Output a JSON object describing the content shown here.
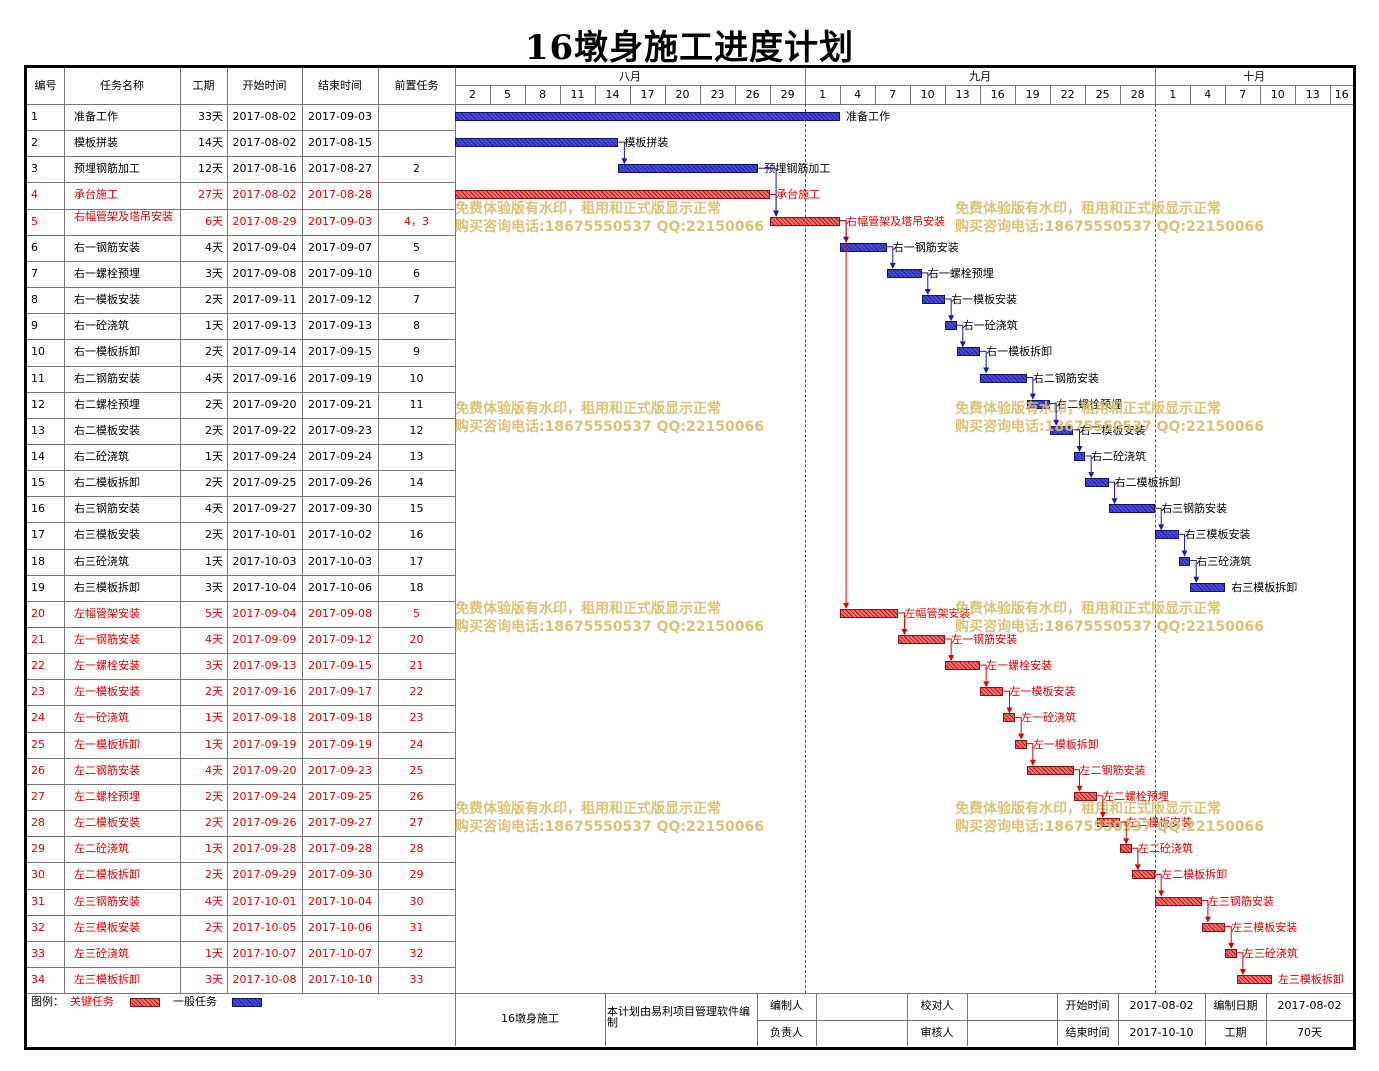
{
  "title": "16墩身施工进度计划",
  "colors": {
    "critical": "#e00000",
    "normal": "#1a1aa8"
  },
  "headers": {
    "id": "编号",
    "name": "任务名称",
    "duration": "工期",
    "start": "开始时间",
    "end": "结束时间",
    "pred": "前置任务"
  },
  "months": [
    {
      "label": "八月",
      "first_day_index": 0
    },
    {
      "label": "九月",
      "first_day_index": 30
    },
    {
      "label": "十月",
      "first_day_index": 60
    }
  ],
  "day_ticks": [
    "2",
    "5",
    "8",
    "11",
    "14",
    "17",
    "20",
    "23",
    "26",
    "29",
    "1",
    "4",
    "7",
    "10",
    "13",
    "16",
    "19",
    "22",
    "25",
    "28",
    "1",
    "4",
    "7",
    "10",
    "13",
    "16"
  ],
  "tasks": [
    {
      "id": "1",
      "name": "准备工作",
      "duration": "33天",
      "start": "2017-08-02",
      "end": "2017-09-03",
      "pred": "",
      "critical": false,
      "s": 0,
      "d": 33
    },
    {
      "id": "2",
      "name": "模板拼装",
      "duration": "14天",
      "start": "2017-08-02",
      "end": "2017-08-15",
      "pred": "",
      "critical": false,
      "s": 0,
      "d": 14
    },
    {
      "id": "3",
      "name": "预埋钢筋加工",
      "duration": "12天",
      "start": "2017-08-16",
      "end": "2017-08-27",
      "pred": "2",
      "critical": false,
      "s": 14,
      "d": 12
    },
    {
      "id": "4",
      "name": "承台施工",
      "duration": "27天",
      "start": "2017-08-02",
      "end": "2017-08-28",
      "pred": "",
      "critical": true,
      "s": 0,
      "d": 27
    },
    {
      "id": "5",
      "name": "右幅管架及塔吊安装",
      "duration": "6天",
      "start": "2017-08-29",
      "end": "2017-09-03",
      "pred": "4，3",
      "critical": true,
      "s": 27,
      "d": 6
    },
    {
      "id": "6",
      "name": "右一钢筋安装",
      "duration": "4天",
      "start": "2017-09-04",
      "end": "2017-09-07",
      "pred": "5",
      "critical": false,
      "s": 33,
      "d": 4
    },
    {
      "id": "7",
      "name": "右一螺栓预埋",
      "duration": "3天",
      "start": "2017-09-08",
      "end": "2017-09-10",
      "pred": "6",
      "critical": false,
      "s": 37,
      "d": 3
    },
    {
      "id": "8",
      "name": "右一模板安装",
      "duration": "2天",
      "start": "2017-09-11",
      "end": "2017-09-12",
      "pred": "7",
      "critical": false,
      "s": 40,
      "d": 2
    },
    {
      "id": "9",
      "name": "右一砼浇筑",
      "duration": "1天",
      "start": "2017-09-13",
      "end": "2017-09-13",
      "pred": "8",
      "critical": false,
      "s": 42,
      "d": 1
    },
    {
      "id": "10",
      "name": "右一模板拆卸",
      "duration": "2天",
      "start": "2017-09-14",
      "end": "2017-09-15",
      "pred": "9",
      "critical": false,
      "s": 43,
      "d": 2
    },
    {
      "id": "11",
      "name": "右二钢筋安装",
      "duration": "4天",
      "start": "2017-09-16",
      "end": "2017-09-19",
      "pred": "10",
      "critical": false,
      "s": 45,
      "d": 4
    },
    {
      "id": "12",
      "name": "右二螺栓预埋",
      "duration": "2天",
      "start": "2017-09-20",
      "end": "2017-09-21",
      "pred": "11",
      "critical": false,
      "s": 49,
      "d": 2
    },
    {
      "id": "13",
      "name": "右二模板安装",
      "duration": "2天",
      "start": "2017-09-22",
      "end": "2017-09-23",
      "pred": "12",
      "critical": false,
      "s": 51,
      "d": 2
    },
    {
      "id": "14",
      "name": "右二砼浇筑",
      "duration": "1天",
      "start": "2017-09-24",
      "end": "2017-09-24",
      "pred": "13",
      "critical": false,
      "s": 53,
      "d": 1
    },
    {
      "id": "15",
      "name": "右二模板拆卸",
      "duration": "2天",
      "start": "2017-09-25",
      "end": "2017-09-26",
      "pred": "14",
      "critical": false,
      "s": 54,
      "d": 2
    },
    {
      "id": "16",
      "name": "右三钢筋安装",
      "duration": "4天",
      "start": "2017-09-27",
      "end": "2017-09-30",
      "pred": "15",
      "critical": false,
      "s": 56,
      "d": 4
    },
    {
      "id": "17",
      "name": "右三模板安装",
      "duration": "2天",
      "start": "2017-10-01",
      "end": "2017-10-02",
      "pred": "16",
      "critical": false,
      "s": 60,
      "d": 2
    },
    {
      "id": "18",
      "name": "右三砼浇筑",
      "duration": "1天",
      "start": "2017-10-03",
      "end": "2017-10-03",
      "pred": "17",
      "critical": false,
      "s": 62,
      "d": 1
    },
    {
      "id": "19",
      "name": "右三模板拆卸",
      "duration": "3天",
      "start": "2017-10-04",
      "end": "2017-10-06",
      "pred": "18",
      "critical": false,
      "s": 63,
      "d": 3
    },
    {
      "id": "20",
      "name": "左幅管架安装",
      "duration": "5天",
      "start": "2017-09-04",
      "end": "2017-09-08",
      "pred": "5",
      "critical": true,
      "s": 33,
      "d": 5
    },
    {
      "id": "21",
      "name": "左一钢筋安装",
      "duration": "4天",
      "start": "2017-09-09",
      "end": "2017-09-12",
      "pred": "20",
      "critical": true,
      "s": 38,
      "d": 4
    },
    {
      "id": "22",
      "name": "左一螺栓安装",
      "duration": "3天",
      "start": "2017-09-13",
      "end": "2017-09-15",
      "pred": "21",
      "critical": true,
      "s": 42,
      "d": 3
    },
    {
      "id": "23",
      "name": "左一模板安装",
      "duration": "2天",
      "start": "2017-09-16",
      "end": "2017-09-17",
      "pred": "22",
      "critical": true,
      "s": 45,
      "d": 2
    },
    {
      "id": "24",
      "name": "左一砼浇筑",
      "duration": "1天",
      "start": "2017-09-18",
      "end": "2017-09-18",
      "pred": "23",
      "critical": true,
      "s": 47,
      "d": 1
    },
    {
      "id": "25",
      "name": "左一模板拆卸",
      "duration": "1天",
      "start": "2017-09-19",
      "end": "2017-09-19",
      "pred": "24",
      "critical": true,
      "s": 48,
      "d": 1
    },
    {
      "id": "26",
      "name": "左二钢筋安装",
      "duration": "4天",
      "start": "2017-09-20",
      "end": "2017-09-23",
      "pred": "25",
      "critical": true,
      "s": 49,
      "d": 4
    },
    {
      "id": "27",
      "name": "左二螺栓预埋",
      "duration": "2天",
      "start": "2017-09-24",
      "end": "2017-09-25",
      "pred": "26",
      "critical": true,
      "s": 53,
      "d": 2
    },
    {
      "id": "28",
      "name": "左二模板安装",
      "duration": "2天",
      "start": "2017-09-26",
      "end": "2017-09-27",
      "pred": "27",
      "critical": true,
      "s": 55,
      "d": 2
    },
    {
      "id": "29",
      "name": "左二砼浇筑",
      "duration": "1天",
      "start": "2017-09-28",
      "end": "2017-09-28",
      "pred": "28",
      "critical": true,
      "s": 57,
      "d": 1
    },
    {
      "id": "30",
      "name": "左二模板拆卸",
      "duration": "2天",
      "start": "2017-09-29",
      "end": "2017-09-30",
      "pred": "29",
      "critical": true,
      "s": 58,
      "d": 2
    },
    {
      "id": "31",
      "name": "左三钢筋安装",
      "duration": "4天",
      "start": "2017-10-01",
      "end": "2017-10-04",
      "pred": "30",
      "critical": true,
      "s": 60,
      "d": 4
    },
    {
      "id": "32",
      "name": "左三模板安装",
      "duration": "2天",
      "start": "2017-10-05",
      "end": "2017-10-06",
      "pred": "31",
      "critical": true,
      "s": 64,
      "d": 2
    },
    {
      "id": "33",
      "name": "左三砼浇筑",
      "duration": "1天",
      "start": "2017-10-07",
      "end": "2017-10-07",
      "pred": "32",
      "critical": true,
      "s": 66,
      "d": 1
    },
    {
      "id": "34",
      "name": "左三模板拆卸",
      "duration": "3天",
      "start": "2017-10-08",
      "end": "2017-10-10",
      "pred": "33",
      "critical": true,
      "s": 67,
      "d": 3
    }
  ],
  "watermark": {
    "line1": "免费体验版有水印，租用和正式版显示正常",
    "line2": "购买咨询电话:18675550537 QQ:22150066"
  },
  "legend": {
    "label": "图例：",
    "critical": "关键任务",
    "normal": "一般任务"
  },
  "footer": {
    "project": "16墩身施工",
    "note": "本计划由易利项目管理软件编制",
    "editor_label": "编制人",
    "editor": "",
    "checker_label": "校对人",
    "checker": "",
    "start_label": "开始时间",
    "start": "2017-08-02",
    "date_label": "编制日期",
    "date": "2017-08-02",
    "owner_label": "负责人",
    "owner": "",
    "reviewer_label": "审核人",
    "reviewer": "",
    "end_label": "结束时间",
    "end": "2017-10-10",
    "duration_label": "工期",
    "duration": "70天"
  }
}
